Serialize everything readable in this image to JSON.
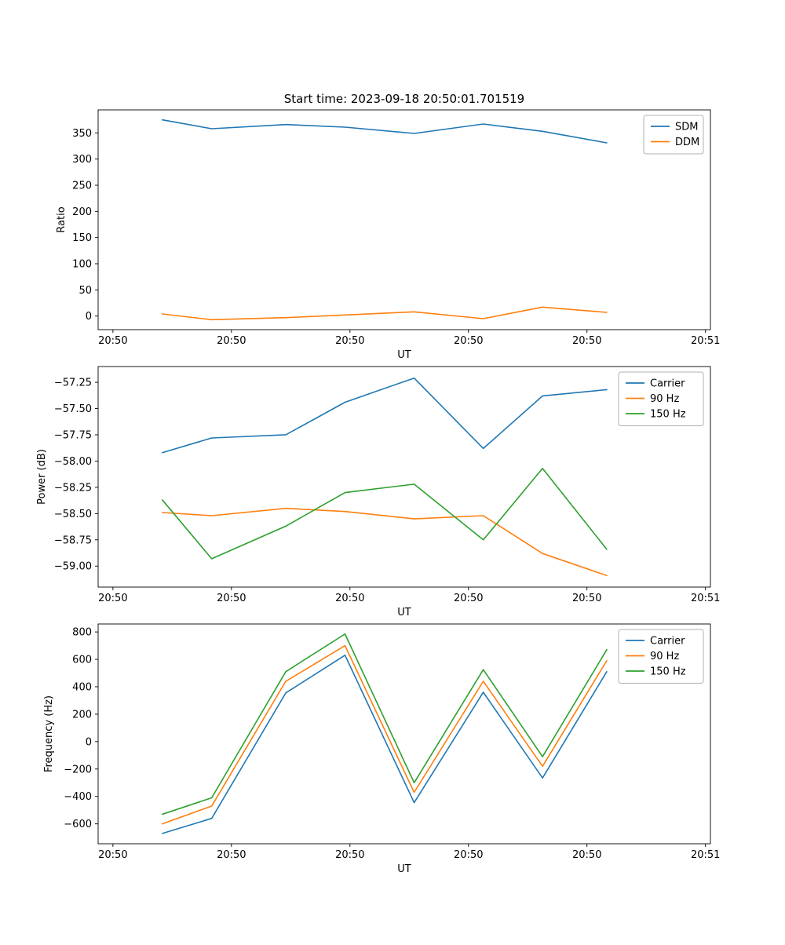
{
  "figure": {
    "title": "Start time: 2023-09-18 20:50:01.701519",
    "colors": {
      "blue": "#1f77b4",
      "orange": "#ff7f0e",
      "green": "#2ca02c"
    }
  },
  "chart_data": [
    {
      "type": "line",
      "name": "ratio",
      "xlabel": "UT",
      "ylabel": "Ratio",
      "xlim": [
        -1.5,
        60.5
      ],
      "ylim": [
        -26,
        394
      ],
      "x": [
        5,
        10,
        17.5,
        23.5,
        30.5,
        37.5,
        43.5,
        50
      ],
      "xticks": {
        "values": [
          0,
          12,
          24,
          36,
          48,
          60
        ],
        "labels": [
          "20:50",
          "20:50",
          "20:50",
          "20:50",
          "20:50",
          "20:51"
        ]
      },
      "yticks": {
        "values": [
          0,
          50,
          100,
          150,
          200,
          250,
          300,
          350
        ],
        "labels": [
          "0",
          "50",
          "100",
          "150",
          "200",
          "250",
          "300",
          "350"
        ]
      },
      "legend_position": "upper right",
      "grid": false,
      "series": [
        {
          "name": "SDM",
          "color": "#1f77b4",
          "values": [
            375,
            358,
            366,
            361,
            349,
            367,
            353,
            331
          ]
        },
        {
          "name": "DDM",
          "color": "#ff7f0e",
          "values": [
            4,
            -7,
            -3,
            2,
            8,
            -5,
            17,
            7
          ]
        }
      ]
    },
    {
      "type": "line",
      "name": "power",
      "xlabel": "UT",
      "ylabel": "Power (dB)",
      "xlim": [
        -1.5,
        60.5
      ],
      "ylim": [
        -59.2,
        -57.1
      ],
      "x": [
        5,
        10,
        17.5,
        23.5,
        30.5,
        37.5,
        43.5,
        50
      ],
      "xticks": {
        "values": [
          0,
          12,
          24,
          36,
          48,
          60
        ],
        "labels": [
          "20:50",
          "20:50",
          "20:50",
          "20:50",
          "20:50",
          "20:51"
        ]
      },
      "yticks": {
        "values": [
          -59.0,
          -58.75,
          -58.5,
          -58.25,
          -58.0,
          -57.75,
          -57.5,
          -57.25
        ],
        "labels": [
          "−59.00",
          "−58.75",
          "−58.50",
          "−58.25",
          "−58.00",
          "−57.75",
          "−57.50",
          "−57.25"
        ]
      },
      "legend_position": "upper right",
      "grid": false,
      "series": [
        {
          "name": "Carrier",
          "color": "#1f77b4",
          "values": [
            -57.92,
            -57.78,
            -57.75,
            -57.44,
            -57.21,
            -57.88,
            -57.38,
            -57.32
          ]
        },
        {
          "name": "90 Hz",
          "color": "#ff7f0e",
          "values": [
            -58.49,
            -58.52,
            -58.45,
            -58.48,
            -58.55,
            -58.52,
            -58.88,
            -59.09
          ]
        },
        {
          "name": "150 Hz",
          "color": "#2ca02c",
          "values": [
            -58.37,
            -58.93,
            -58.62,
            -58.3,
            -58.22,
            -58.75,
            -58.07,
            -58.84
          ]
        }
      ]
    },
    {
      "type": "line",
      "name": "frequency",
      "xlabel": "UT",
      "ylabel": "Frequency (Hz)",
      "xlim": [
        -1.5,
        60.5
      ],
      "ylim": [
        -745,
        858
      ],
      "x": [
        5,
        10,
        17.5,
        23.5,
        30.5,
        37.5,
        43.5,
        50
      ],
      "xticks": {
        "values": [
          0,
          12,
          24,
          36,
          48,
          60
        ],
        "labels": [
          "20:50",
          "20:50",
          "20:50",
          "20:50",
          "20:50",
          "20:51"
        ]
      },
      "yticks": {
        "values": [
          -600,
          -400,
          -200,
          0,
          200,
          400,
          600,
          800
        ],
        "labels": [
          "−600",
          "−400",
          "−200",
          "0",
          "200",
          "400",
          "600",
          "800"
        ]
      },
      "legend_position": "upper right",
      "grid": false,
      "series": [
        {
          "name": "Carrier",
          "color": "#1f77b4",
          "values": [
            -670,
            -560,
            355,
            630,
            -445,
            360,
            -265,
            510
          ]
        },
        {
          "name": "90 Hz",
          "color": "#ff7f0e",
          "values": [
            -600,
            -470,
            440,
            700,
            -370,
            440,
            -180,
            590
          ]
        },
        {
          "name": "150 Hz",
          "color": "#2ca02c",
          "values": [
            -530,
            -410,
            510,
            785,
            -300,
            525,
            -110,
            670
          ]
        }
      ]
    }
  ]
}
